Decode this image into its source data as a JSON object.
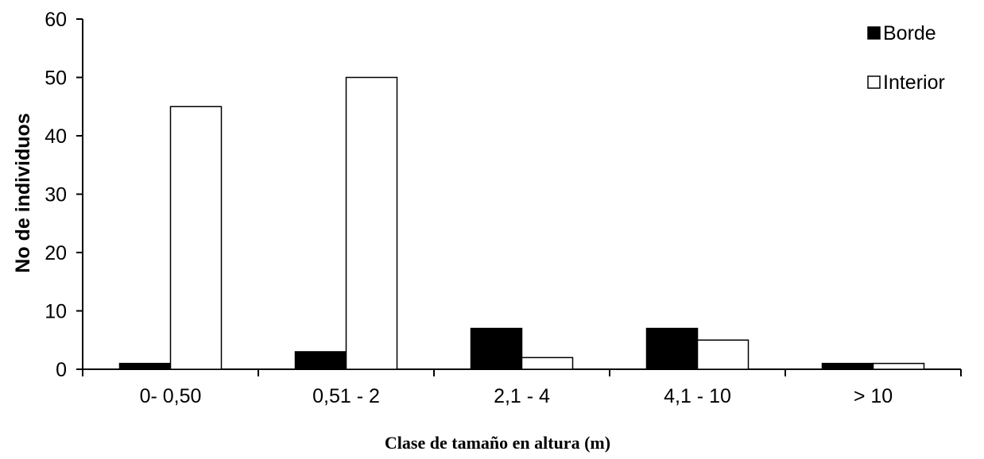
{
  "chart_data": {
    "type": "bar",
    "categories": [
      "0- 0,50",
      "0,51 - 2",
      "2,1 - 4",
      "4,1 - 10",
      "> 10"
    ],
    "series": [
      {
        "name": "Borde",
        "values": [
          1,
          3,
          7,
          7,
          1
        ],
        "color": "#000000"
      },
      {
        "name": "Interior",
        "values": [
          45,
          50,
          2,
          5,
          1
        ],
        "color": "#ffffff"
      }
    ],
    "xlabel": "Clase de tamaño en altura (m)",
    "ylabel": "No de individuos",
    "ylim": [
      0,
      60
    ],
    "yticks": [
      0,
      10,
      20,
      30,
      40,
      50,
      60
    ],
    "grid": false,
    "legend_position": "top-right"
  }
}
